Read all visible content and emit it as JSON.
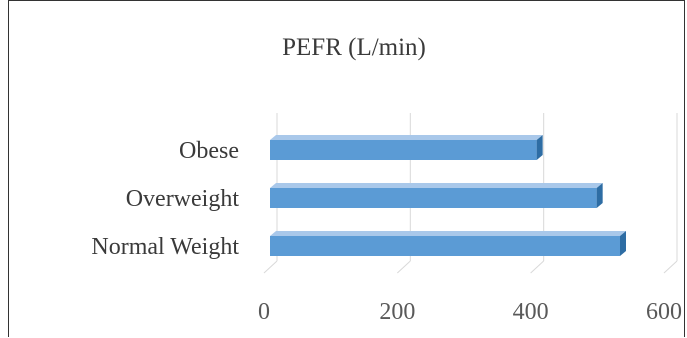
{
  "chart_data": {
    "type": "bar",
    "orientation": "horizontal",
    "title": "PEFR (L/min)",
    "categories": [
      "Normal Weight",
      "Overweight",
      "Obese"
    ],
    "values": [
      525,
      490,
      400
    ],
    "xlim": [
      0,
      600
    ],
    "xticks": [
      "0",
      "200",
      "400",
      "600"
    ],
    "grid": true,
    "legend": "none",
    "bar_color": "#5b9bd5",
    "bar_top_color": "#a9c8ea",
    "bar_side_color": "#2e6da4"
  }
}
